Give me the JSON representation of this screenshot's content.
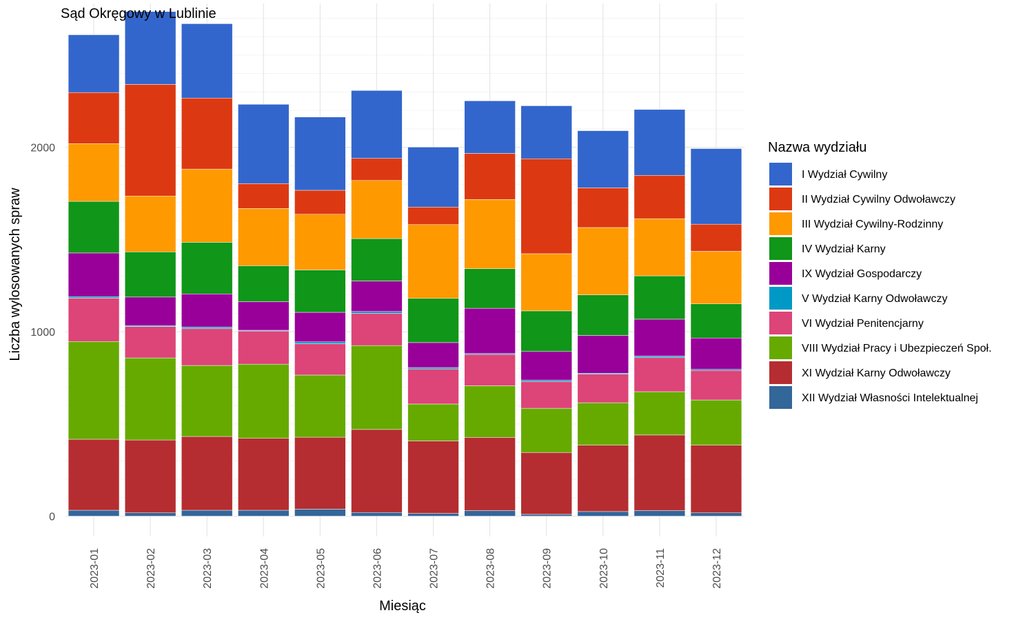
{
  "chart_data": {
    "type": "bar",
    "stacked": true,
    "title": "Sąd Okręgowy w Lublinie",
    "xlabel": "Miesiąc",
    "ylabel": "Liczba wylosowanych spraw",
    "ylim": [
      -110,
      2780
    ],
    "yticks": [
      0,
      1000,
      2000
    ],
    "grid": true,
    "legend_position": "right",
    "legend_title": "Nazwa wydziału",
    "categories": [
      "2023-01",
      "2023-02",
      "2023-03",
      "2023-04",
      "2023-05",
      "2023-06",
      "2023-07",
      "2023-08",
      "2023-09",
      "2023-10",
      "2023-11",
      "2023-12"
    ],
    "series": [
      {
        "name": "XII Wydział Własności Intelektualnej",
        "color": "#336699",
        "values": [
          32,
          18,
          32,
          32,
          38,
          20,
          15,
          30,
          10,
          25,
          30,
          18
        ]
      },
      {
        "name": "XI Wydział Karny Odwoławczy",
        "color": "#B52D30",
        "values": [
          385,
          395,
          400,
          390,
          390,
          450,
          393,
          397,
          335,
          360,
          410,
          367
        ]
      },
      {
        "name": "VIII Wydział Pracy i Ubezpieczeń Społ.",
        "color": "#66AA00",
        "values": [
          530,
          445,
          385,
          402,
          337,
          455,
          200,
          280,
          240,
          230,
          235,
          245
        ]
      },
      {
        "name": "VI Wydział Penitencjarny",
        "color": "#DD4477",
        "values": [
          235,
          170,
          200,
          180,
          170,
          175,
          190,
          170,
          145,
          155,
          185,
          160
        ]
      },
      {
        "name": "V Wydział Karny Odwoławczy",
        "color": "#0099C6",
        "values": [
          8,
          5,
          8,
          4,
          10,
          10,
          8,
          5,
          8,
          5,
          8,
          6
        ]
      },
      {
        "name": "IX Wydział Gospodarczy",
        "color": "#990099",
        "values": [
          237,
          155,
          180,
          155,
          160,
          165,
          135,
          245,
          155,
          205,
          200,
          170
        ]
      },
      {
        "name": "IV Wydział Karny",
        "color": "#109618",
        "values": [
          280,
          245,
          280,
          195,
          230,
          230,
          240,
          215,
          220,
          220,
          235,
          185
        ]
      },
      {
        "name": "III Wydział Cywilny-Rodzinny",
        "color": "#FF9900",
        "values": [
          313,
          303,
          397,
          310,
          302,
          315,
          400,
          375,
          310,
          365,
          310,
          285
        ]
      },
      {
        "name": "II Wydział Cywilny Odwoławczy",
        "color": "#DC3912",
        "values": [
          277,
          605,
          385,
          135,
          130,
          120,
          95,
          250,
          515,
          215,
          235,
          147
        ]
      },
      {
        "name": "I Wydział Cywilny",
        "color": "#3366CC",
        "values": [
          313,
          395,
          403,
          430,
          397,
          368,
          325,
          285,
          287,
          310,
          357,
          410
        ]
      }
    ]
  }
}
